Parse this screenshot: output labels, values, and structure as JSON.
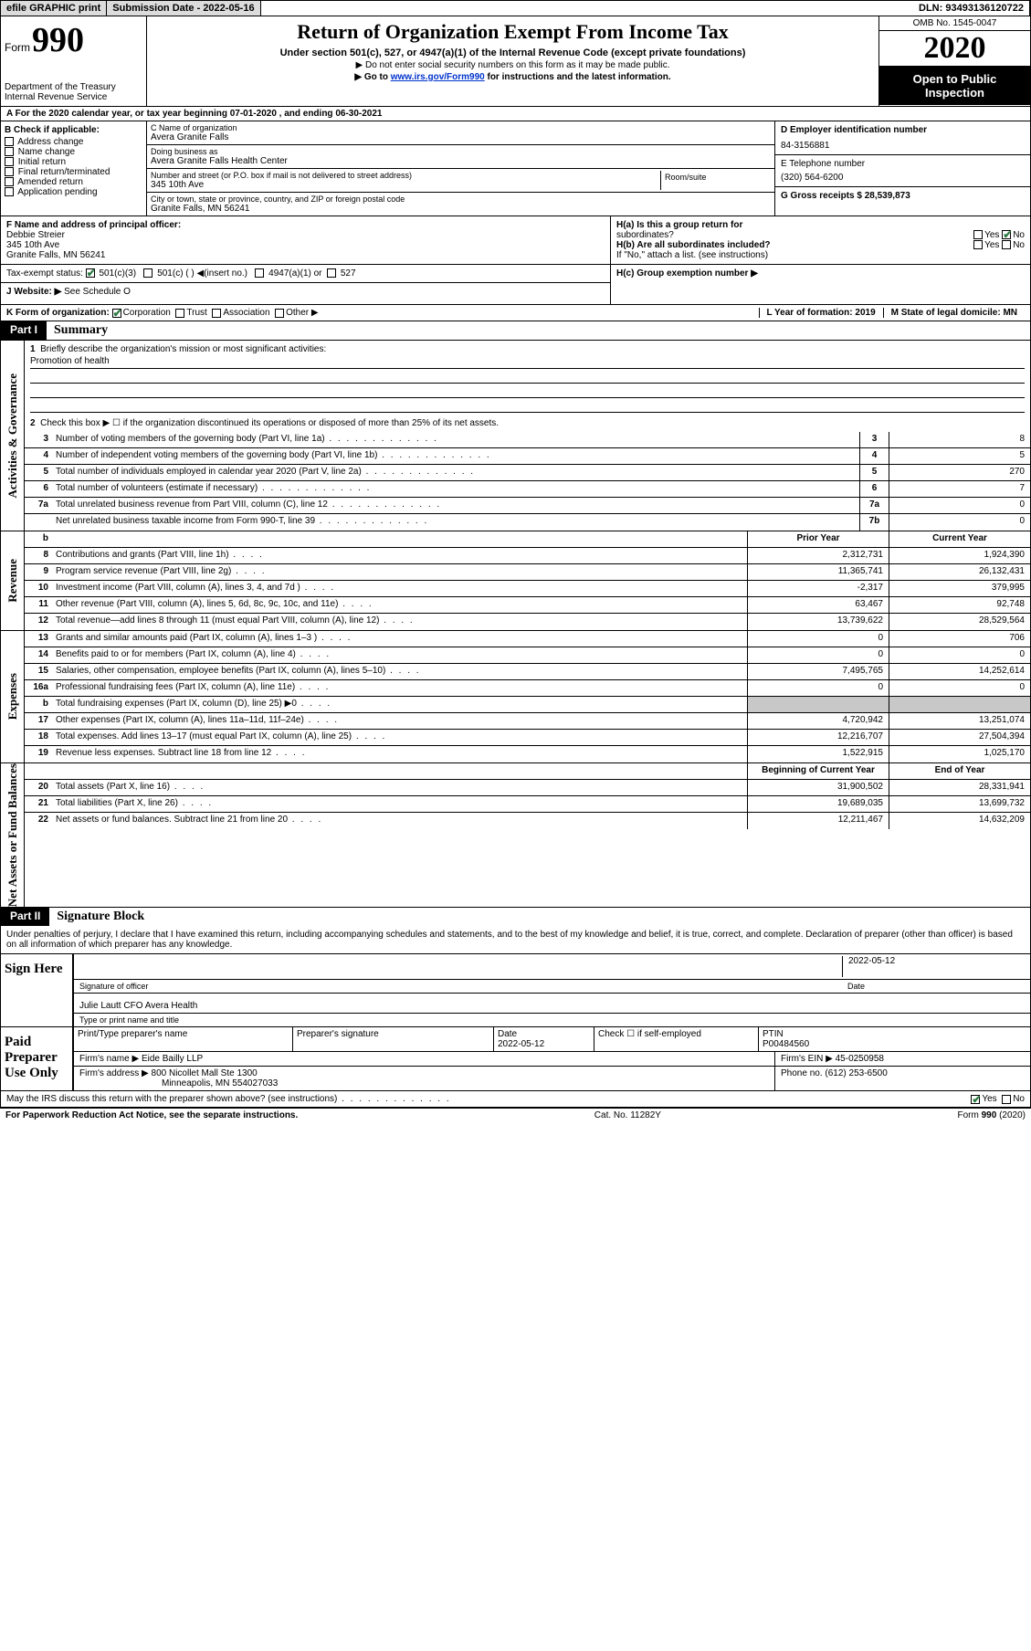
{
  "topbar": {
    "efile": "efile GRAPHIC print",
    "sub_lbl": "Submission Date - 2022-05-16",
    "dln": "DLN: 93493136120722"
  },
  "header": {
    "form_word": "Form",
    "form_num": "990",
    "title": "Return of Organization Exempt From Income Tax",
    "subtitle": "Under section 501(c), 527, or 4947(a)(1) of the Internal Revenue Code (except private foundations)",
    "note1": "▶ Do not enter social security numbers on this form as it may be made public.",
    "note2_pre": "▶ Go to ",
    "note2_link": "www.irs.gov/Form990",
    "note2_post": " for instructions and the latest information.",
    "dept": "Department of the Treasury\nInternal Revenue Service",
    "omb": "OMB No. 1545-0047",
    "year": "2020",
    "inspect": "Open to Public Inspection"
  },
  "row_a": "A For the 2020 calendar year, or tax year beginning 07-01-2020    , and ending 06-30-2021",
  "col_b": {
    "label": "B Check if applicable:",
    "items": [
      "Address change",
      "Name change",
      "Initial return",
      "Final return/terminated",
      "Amended return",
      "Application pending"
    ]
  },
  "col_c": {
    "c_lbl": "C Name of organization",
    "c_val": "Avera Granite Falls",
    "dba_lbl": "Doing business as",
    "dba_val": "Avera Granite Falls Health Center",
    "addr_lbl": "Number and street (or P.O. box if mail is not delivered to street address)",
    "room_lbl": "Room/suite",
    "addr_val": "345 10th Ave",
    "city_lbl": "City or town, state or province, country, and ZIP or foreign postal code",
    "city_val": "Granite Falls, MN  56241"
  },
  "col_d": {
    "d_lbl": "D Employer identification number",
    "d_val": "84-3156881",
    "e_lbl": "E Telephone number",
    "e_val": "(320) 564-6200",
    "g_lbl": "G Gross receipts $ 28,539,873"
  },
  "section_f": {
    "f_lbl": "F Name and address of principal officer:",
    "f_name": "Debbie Streier",
    "f_addr1": "345 10th Ave",
    "f_addr2": "Granite Falls, MN  56241",
    "tax_lbl": "Tax-exempt status:",
    "tax_501c3": "501(c)(3)",
    "tax_501c": "501(c) (  ) ◀(insert no.)",
    "tax_4947": "4947(a)(1) or",
    "tax_527": "527",
    "web_lbl": "J   Website: ▶",
    "web_val": "See Schedule O"
  },
  "section_h": {
    "ha_lbl": "H(a)  Is this a group return for",
    "ha_sub": "subordinates?",
    "hb_lbl": "H(b)  Are all subordinates included?",
    "hb_note": "If \"No,\" attach a list. (see instructions)",
    "hc_lbl": "H(c)  Group exemption number ▶",
    "yes": "Yes",
    "no": "No"
  },
  "row_k": {
    "k_lbl": "K Form of organization:",
    "k_corp": "Corporation",
    "k_trust": "Trust",
    "k_assoc": "Association",
    "k_other": "Other ▶",
    "l_lbl": "L Year of formation: 2019",
    "m_lbl": "M State of legal domicile: MN"
  },
  "part1": {
    "part": "Part I",
    "title": "Summary",
    "q1_num": "1",
    "q1": "Briefly describe the organization's mission or most significant activities:",
    "q1_val": "Promotion of health",
    "q2_num": "2",
    "q2": "Check this box ▶ ☐  if the organization discontinued its operations or disposed of more than 25% of its net assets.",
    "vtab1": "Activities & Governance",
    "vtab2": "Revenue",
    "vtab3": "Expenses",
    "vtab4": "Net Assets or Fund Balances",
    "rows_gov": [
      {
        "n": "3",
        "d": "Number of voting members of the governing body (Part VI, line 1a)",
        "b": "3",
        "v": "8"
      },
      {
        "n": "4",
        "d": "Number of independent voting members of the governing body (Part VI, line 1b)",
        "b": "4",
        "v": "5"
      },
      {
        "n": "5",
        "d": "Total number of individuals employed in calendar year 2020 (Part V, line 2a)",
        "b": "5",
        "v": "270"
      },
      {
        "n": "6",
        "d": "Total number of volunteers (estimate if necessary)",
        "b": "6",
        "v": "7"
      },
      {
        "n": "7a",
        "d": "Total unrelated business revenue from Part VIII, column (C), line 12",
        "b": "7a",
        "v": "0"
      },
      {
        "n": "",
        "d": "Net unrelated business taxable income from Form 990-T, line 39",
        "b": "7b",
        "v": "0"
      }
    ],
    "hdr_b": "b",
    "hdr_prior": "Prior Year",
    "hdr_curr": "Current Year",
    "rows_rev": [
      {
        "n": "8",
        "d": "Contributions and grants (Part VIII, line 1h)",
        "p": "2,312,731",
        "c": "1,924,390"
      },
      {
        "n": "9",
        "d": "Program service revenue (Part VIII, line 2g)",
        "p": "11,365,741",
        "c": "26,132,431"
      },
      {
        "n": "10",
        "d": "Investment income (Part VIII, column (A), lines 3, 4, and 7d )",
        "p": "-2,317",
        "c": "379,995"
      },
      {
        "n": "11",
        "d": "Other revenue (Part VIII, column (A), lines 5, 6d, 8c, 9c, 10c, and 11e)",
        "p": "63,467",
        "c": "92,748"
      },
      {
        "n": "12",
        "d": "Total revenue—add lines 8 through 11 (must equal Part VIII, column (A), line 12)",
        "p": "13,739,622",
        "c": "28,529,564"
      }
    ],
    "rows_exp": [
      {
        "n": "13",
        "d": "Grants and similar amounts paid (Part IX, column (A), lines 1–3 )",
        "p": "0",
        "c": "706"
      },
      {
        "n": "14",
        "d": "Benefits paid to or for members (Part IX, column (A), line 4)",
        "p": "0",
        "c": "0"
      },
      {
        "n": "15",
        "d": "Salaries, other compensation, employee benefits (Part IX, column (A), lines 5–10)",
        "p": "7,495,765",
        "c": "14,252,614"
      },
      {
        "n": "16a",
        "d": "Professional fundraising fees (Part IX, column (A), line 11e)",
        "p": "0",
        "c": "0"
      },
      {
        "n": "b",
        "d": "Total fundraising expenses (Part IX, column (D), line 25) ▶0",
        "p": "",
        "c": "",
        "shaded": true
      },
      {
        "n": "17",
        "d": "Other expenses (Part IX, column (A), lines 11a–11d, 11f–24e)",
        "p": "4,720,942",
        "c": "13,251,074"
      },
      {
        "n": "18",
        "d": "Total expenses. Add lines 13–17 (must equal Part IX, column (A), line 25)",
        "p": "12,216,707",
        "c": "27,504,394"
      },
      {
        "n": "19",
        "d": "Revenue less expenses. Subtract line 18 from line 12",
        "p": "1,522,915",
        "c": "1,025,170"
      }
    ],
    "hdr_beg": "Beginning of Current Year",
    "hdr_end": "End of Year",
    "rows_net": [
      {
        "n": "20",
        "d": "Total assets (Part X, line 16)",
        "p": "31,900,502",
        "c": "28,331,941"
      },
      {
        "n": "21",
        "d": "Total liabilities (Part X, line 26)",
        "p": "19,689,035",
        "c": "13,699,732"
      },
      {
        "n": "22",
        "d": "Net assets or fund balances. Subtract line 21 from line 20",
        "p": "12,211,467",
        "c": "14,632,209"
      }
    ]
  },
  "part2": {
    "part": "Part II",
    "title": "Signature Block",
    "decl": "Under penalties of perjury, I declare that I have examined this return, including accompanying schedules and statements, and to the best of my knowledge and belief, it is true, correct, and complete. Declaration of preparer (other than officer) is based on all information of which preparer has any knowledge.",
    "sign_here": "Sign Here",
    "sig_officer": "Signature of officer",
    "sig_date": "2022-05-12",
    "sig_date_lbl": "Date",
    "officer_name": "Julie Lautt CFO Avera Health",
    "officer_type": "Type or print name and title",
    "paid": "Paid Preparer Use Only",
    "p_name_lbl": "Print/Type preparer's name",
    "p_sig_lbl": "Preparer's signature",
    "p_date_lbl": "Date",
    "p_date": "2022-05-12",
    "p_check_lbl": "Check ☐ if self-employed",
    "p_ptin_lbl": "PTIN",
    "p_ptin": "P00484560",
    "firm_name_lbl": "Firm's name   ▶",
    "firm_name": "Eide Bailly LLP",
    "firm_ein_lbl": "Firm's EIN ▶",
    "firm_ein": "45-0250958",
    "firm_addr_lbl": "Firm's address ▶",
    "firm_addr1": "800 Nicollet Mall Ste 1300",
    "firm_addr2": "Minneapolis, MN  554027033",
    "firm_phone_lbl": "Phone no.",
    "firm_phone": "(612) 253-6500",
    "discuss": "May the IRS discuss this return with the preparer shown above? (see instructions)"
  },
  "footer": {
    "left": "For Paperwork Reduction Act Notice, see the separate instructions.",
    "mid": "Cat. No. 11282Y",
    "right": "Form 990 (2020)"
  }
}
